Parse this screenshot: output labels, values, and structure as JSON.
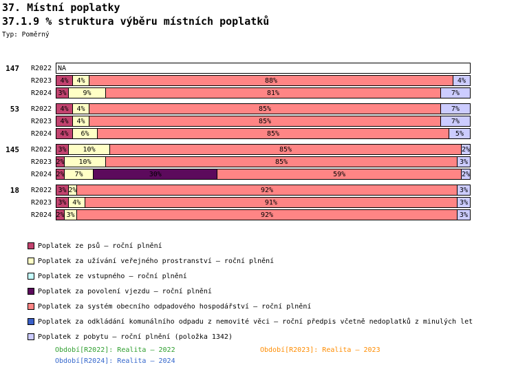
{
  "header": {
    "title": "37. Místní poplatky",
    "subtitle": "37.1.9 % struktura výběru místních poplatků",
    "type_label": "Typ: Poměrný"
  },
  "chart_data": {
    "type": "bar",
    "orientation": "horizontal",
    "stacked": true,
    "unit": "%",
    "value_range": [
      0,
      100
    ],
    "categories": [
      {
        "id": "psu",
        "label": "Poplatek ze psů – roční plnění",
        "color": "#c2436f"
      },
      {
        "id": "prostranstvi",
        "label": "Poplatek za užívání veřejného prostranství – roční plnění",
        "color": "#ffffc6"
      },
      {
        "id": "vstupne",
        "label": "Poplatek ze vstupného – roční plnění",
        "color": "#c6ffff"
      },
      {
        "id": "vjezd",
        "label": "Poplatek za povolení vjezdu – roční plnění",
        "color": "#5c0a5c"
      },
      {
        "id": "odpad_system",
        "label": "Poplatek za systém obecního odpadového hospodářství – roční plnění",
        "color": "#ff8585"
      },
      {
        "id": "odpad_nemovitost",
        "label": "Poplatek za odkládání komunálního odpadu z nemovité věci – roční předpis včetně nedoplatků z minulých let",
        "color": "#3a5fc8"
      },
      {
        "id": "pobyt",
        "label": "Poplatek z pobytu – roční plnění (položka 1342)",
        "color": "#ccccff"
      }
    ],
    "groups": [
      {
        "label": "147",
        "rows": [
          {
            "label": "R2022",
            "na": true,
            "na_label": "NA",
            "segments": []
          },
          {
            "label": "R2023",
            "segments": [
              {
                "category": "psu",
                "value": 4
              },
              {
                "category": "prostranstvi",
                "value": 4
              },
              {
                "category": "odpad_system",
                "value": 88
              },
              {
                "category": "pobyt",
                "value": 4
              }
            ]
          },
          {
            "label": "R2024",
            "segments": [
              {
                "category": "psu",
                "value": 3
              },
              {
                "category": "prostranstvi",
                "value": 9
              },
              {
                "category": "odpad_system",
                "value": 81
              },
              {
                "category": "pobyt",
                "value": 7
              }
            ]
          }
        ]
      },
      {
        "label": "53",
        "rows": [
          {
            "label": "R2022",
            "segments": [
              {
                "category": "psu",
                "value": 4
              },
              {
                "category": "prostranstvi",
                "value": 4
              },
              {
                "category": "odpad_system",
                "value": 85
              },
              {
                "category": "pobyt",
                "value": 7
              }
            ]
          },
          {
            "label": "R2023",
            "segments": [
              {
                "category": "psu",
                "value": 4
              },
              {
                "category": "prostranstvi",
                "value": 4
              },
              {
                "category": "odpad_system",
                "value": 85
              },
              {
                "category": "pobyt",
                "value": 7
              }
            ]
          },
          {
            "label": "R2024",
            "segments": [
              {
                "category": "psu",
                "value": 4
              },
              {
                "category": "prostranstvi",
                "value": 6
              },
              {
                "category": "odpad_system",
                "value": 85
              },
              {
                "category": "pobyt",
                "value": 5
              }
            ]
          }
        ]
      },
      {
        "label": "145",
        "rows": [
          {
            "label": "R2022",
            "segments": [
              {
                "category": "psu",
                "value": 3
              },
              {
                "category": "prostranstvi",
                "value": 10
              },
              {
                "category": "odpad_system",
                "value": 85
              },
              {
                "category": "pobyt",
                "value": 2
              }
            ]
          },
          {
            "label": "R2023",
            "segments": [
              {
                "category": "psu",
                "value": 2
              },
              {
                "category": "prostranstvi",
                "value": 10
              },
              {
                "category": "odpad_system",
                "value": 85
              },
              {
                "category": "pobyt",
                "value": 3
              }
            ]
          },
          {
            "label": "R2024",
            "segments": [
              {
                "category": "psu",
                "value": 2
              },
              {
                "category": "prostranstvi",
                "value": 7
              },
              {
                "category": "vjezd",
                "value": 30
              },
              {
                "category": "odpad_system",
                "value": 59
              },
              {
                "category": "pobyt",
                "value": 2
              }
            ]
          }
        ]
      },
      {
        "label": "18",
        "rows": [
          {
            "label": "R2022",
            "segments": [
              {
                "category": "psu",
                "value": 3
              },
              {
                "category": "prostranstvi",
                "value": 2
              },
              {
                "category": "odpad_system",
                "value": 92
              },
              {
                "category": "pobyt",
                "value": 3
              }
            ]
          },
          {
            "label": "R2023",
            "segments": [
              {
                "category": "psu",
                "value": 3
              },
              {
                "category": "prostranstvi",
                "value": 4
              },
              {
                "category": "odpad_system",
                "value": 91
              },
              {
                "category": "pobyt",
                "value": 3
              }
            ]
          },
          {
            "label": "R2024",
            "segments": [
              {
                "category": "psu",
                "value": 2
              },
              {
                "category": "prostranstvi",
                "value": 3
              },
              {
                "category": "odpad_system",
                "value": 92
              },
              {
                "category": "pobyt",
                "value": 3
              }
            ]
          }
        ]
      }
    ],
    "title": "37.1.9 % struktura výběru místních poplatků",
    "legend_position": "bottom-left"
  },
  "footer": {
    "periods": [
      {
        "id": "R2022",
        "label": "Období[R2022]: Realita – 2022",
        "color": "#2e9e2e"
      },
      {
        "id": "R2023",
        "label": "Období[R2023]: Realita – 2023",
        "color": "#ff8c00"
      },
      {
        "id": "R2024",
        "label": "Období[R2024]: Realita – 2024",
        "color": "#3366cc"
      }
    ]
  }
}
